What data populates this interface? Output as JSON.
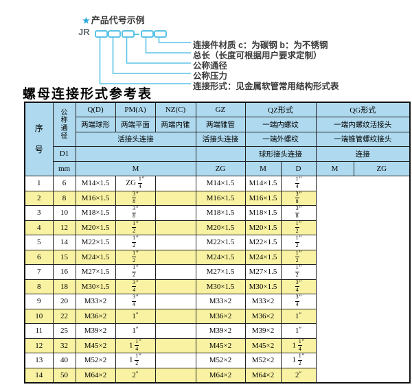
{
  "diagram": {
    "star": "★",
    "title": "产品代号示例",
    "code_prefix": "JR",
    "box_count": 5,
    "dash_after_box": 3,
    "labels": [
      "连接件材质  c：为碳钢  b：为不锈钢",
      "总长（长度可根据用户要求定制）",
      "公称通径",
      "公称压力",
      "连接形式：见金属软管常用结构形式表"
    ],
    "line_color": "#5bc3e6"
  },
  "table": {
    "title": "螺母连接形式参考表",
    "header": {
      "seq": "序号",
      "dn": "公称通径",
      "d1": "D1",
      "mm": "mm",
      "col_groups": [
        "Q(D)",
        "PM(A)",
        "NZ(C)",
        "GZ",
        "QZ形式",
        "QG形式"
      ],
      "row2": [
        "两端球形",
        "两端平面",
        "两端内锥",
        "两端锥管",
        "一端内螺纹",
        "一端内螺纹活接头"
      ],
      "row3": [
        "活接头连接",
        "活接头连接",
        "一端外螺纹",
        "一端锥管螺纹接头"
      ],
      "row4": [
        "球形接头连接",
        "连接"
      ],
      "units": [
        "M",
        "ZG",
        "M",
        "D",
        "M",
        "ZG"
      ]
    },
    "colors": {
      "header_bg": "#aed9ee",
      "row_bg": "#ffffff",
      "row_alt_bg": "#f8f2a2",
      "border": "#222222"
    },
    "rows": [
      [
        "1",
        "6",
        "M14×1.5",
        "ZG 1/4\"",
        "",
        "M14×1.5",
        "M14×1.5",
        "1/4\""
      ],
      [
        "2",
        "8",
        "M16×1.5",
        "3/8\"",
        "",
        "M16×1.5",
        "M16×1.5",
        "3/8\""
      ],
      [
        "3",
        "10",
        "M18×1.5",
        "3/8\"",
        "",
        "M18×1.5",
        "M18×1.5",
        "3/8\""
      ],
      [
        "4",
        "12",
        "M20×1.5",
        "1/2\"",
        "",
        "M20×1.5",
        "M20×1.5",
        "1/2\""
      ],
      [
        "5",
        "14",
        "M22×1.5",
        "1/2\"",
        "",
        "M22×1.5",
        "M22×1.5",
        "1/2\""
      ],
      [
        "6",
        "15",
        "M24×1.5",
        "1/2\"",
        "",
        "M24×1.5",
        "M24×1.5",
        "1/2\""
      ],
      [
        "7",
        "16",
        "M27×1.5",
        "1/2\"",
        "",
        "M27×1.5",
        "M27×1.5",
        "1/2\""
      ],
      [
        "8",
        "18",
        "M30×1.5",
        "3/4\"",
        "",
        "M30×1.5",
        "M30×1.5",
        "3/4\""
      ],
      [
        "9",
        "20",
        "M33×2",
        "3/4\"",
        "",
        "M33×2",
        "M33×2",
        "3/4\""
      ],
      [
        "10",
        "22",
        "M36×2",
        "1\"",
        "",
        "M36×2",
        "M36×2",
        "1\""
      ],
      [
        "11",
        "25",
        "M39×2",
        "1\"",
        "",
        "M39×2",
        "M39×2",
        "1\""
      ],
      [
        "12",
        "32",
        "M45×2",
        "1 1/4\"",
        "",
        "M45×2",
        "M45×2",
        "1 1/4\""
      ],
      [
        "13",
        "40",
        "M52×2",
        "1 1/2\"",
        "",
        "M52×2",
        "M52×2",
        "1 1/2\""
      ],
      [
        "14",
        "50",
        "M64×2",
        "2\"",
        "",
        "M64×2",
        "M64×2",
        "2\""
      ]
    ]
  }
}
